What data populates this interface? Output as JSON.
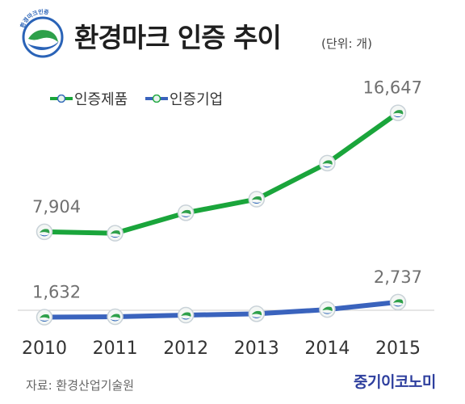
{
  "header": {
    "logo_text": "환경마크인증",
    "title": "환경마크 인증 추이",
    "unit": "(단위: 개)"
  },
  "colors": {
    "series_products": "#1aa53b",
    "series_companies": "#3a63bd",
    "label_text": "#707070",
    "axis": "#cccccc"
  },
  "chart_data": {
    "type": "line",
    "categories": [
      "2010",
      "2011",
      "2012",
      "2013",
      "2014",
      "2015"
    ],
    "series": [
      {
        "name": "인증제품",
        "values": [
          7904,
          7800,
          9300,
          10300,
          12950,
          16647
        ]
      },
      {
        "name": "인증기업",
        "values": [
          1632,
          1660,
          1780,
          1880,
          2190,
          2737
        ]
      }
    ],
    "data_labels": [
      {
        "series": 0,
        "index": 0,
        "text": "7,904"
      },
      {
        "series": 0,
        "index": 5,
        "text": "16,647"
      },
      {
        "series": 1,
        "index": 0,
        "text": "1,632"
      },
      {
        "series": 1,
        "index": 5,
        "text": "2,737"
      }
    ],
    "ylim": [
      0,
      19000
    ],
    "grid": false,
    "legend": "top-left"
  },
  "footer": {
    "source": "자료: 환경산업기술원",
    "brand": "중기이코노미"
  }
}
